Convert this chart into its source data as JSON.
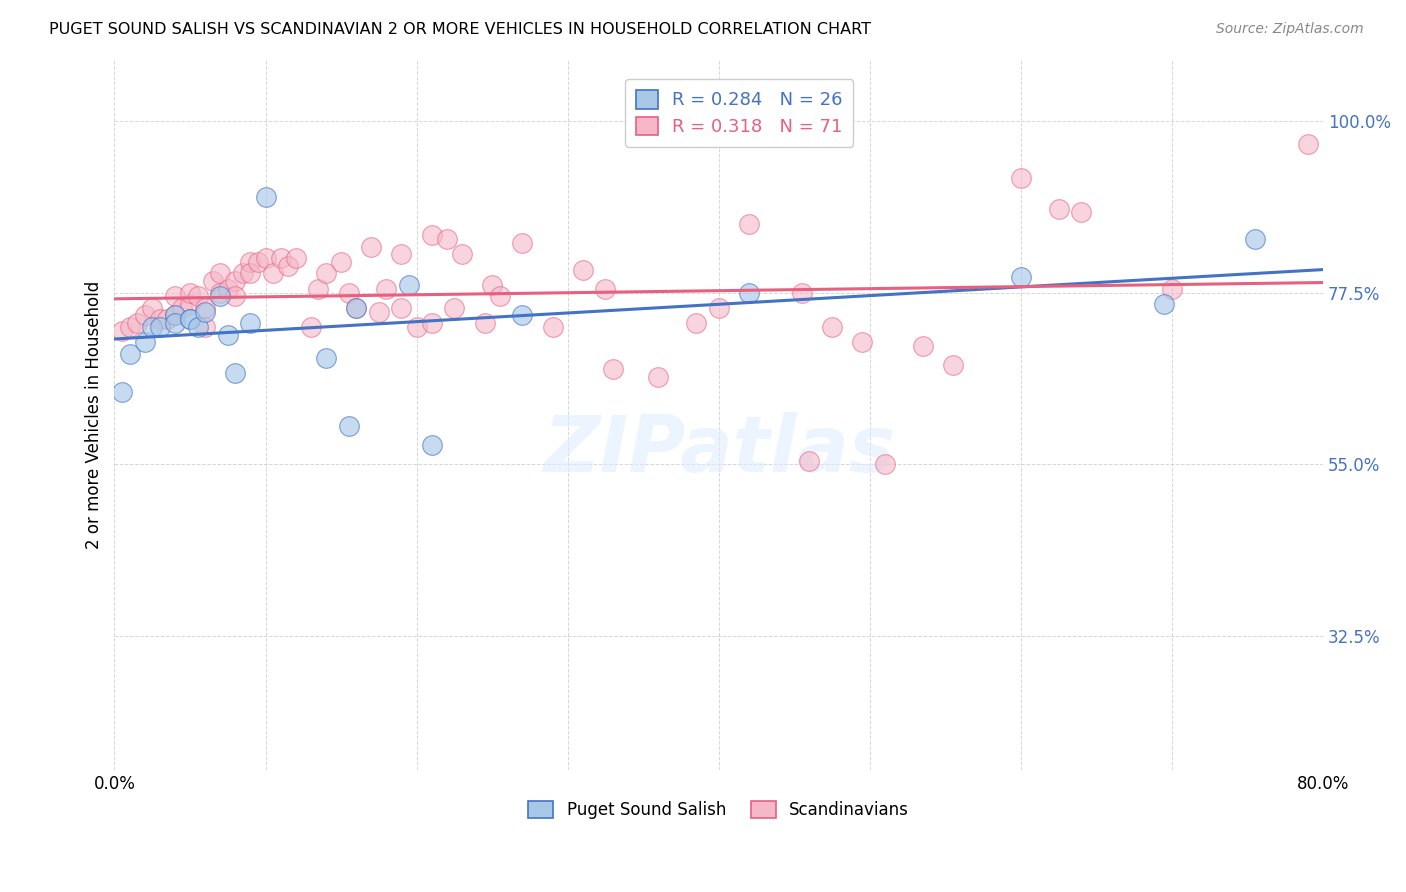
{
  "title": "PUGET SOUND SALISH VS SCANDINAVIAN 2 OR MORE VEHICLES IN HOUSEHOLD CORRELATION CHART",
  "source": "Source: ZipAtlas.com",
  "ylabel": "2 or more Vehicles in Household",
  "legend_label1": "Puget Sound Salish",
  "legend_label2": "Scandinavians",
  "R1": 0.284,
  "N1": 26,
  "R2": 0.318,
  "N2": 71,
  "color_blue": "#a8c8e8",
  "color_pink": "#f4b8c8",
  "color_blue_line": "#4472c4",
  "color_pink_line": "#e86080",
  "color_blue_text": "#4472c4",
  "color_pink_text": "#e86080",
  "color_ytick": "#4472c4",
  "xmin": 0.0,
  "xmax": 0.8,
  "ymin": 0.15,
  "ymax": 1.08,
  "ytick_vals": [
    1.0,
    0.775,
    0.55,
    0.325
  ],
  "ytick_labels": [
    "100.0%",
    "77.5%",
    "55.0%",
    "32.5%"
  ],
  "blue_x": [
    0.005,
    0.01,
    0.02,
    0.025,
    0.03,
    0.04,
    0.04,
    0.05,
    0.05,
    0.055,
    0.06,
    0.07,
    0.075,
    0.08,
    0.09,
    0.1,
    0.14,
    0.155,
    0.16,
    0.195,
    0.21,
    0.27,
    0.42,
    0.6,
    0.695,
    0.755
  ],
  "blue_y": [
    0.645,
    0.695,
    0.71,
    0.73,
    0.73,
    0.745,
    0.735,
    0.74,
    0.74,
    0.73,
    0.75,
    0.77,
    0.72,
    0.67,
    0.735,
    0.9,
    0.69,
    0.6,
    0.755,
    0.785,
    0.575,
    0.745,
    0.775,
    0.795,
    0.76,
    0.845
  ],
  "pink_x": [
    0.005,
    0.01,
    0.015,
    0.02,
    0.025,
    0.03,
    0.035,
    0.04,
    0.04,
    0.045,
    0.05,
    0.05,
    0.055,
    0.06,
    0.06,
    0.065,
    0.07,
    0.07,
    0.075,
    0.08,
    0.08,
    0.085,
    0.09,
    0.09,
    0.095,
    0.1,
    0.105,
    0.11,
    0.115,
    0.12,
    0.13,
    0.135,
    0.14,
    0.15,
    0.155,
    0.16,
    0.17,
    0.175,
    0.18,
    0.19,
    0.19,
    0.2,
    0.21,
    0.21,
    0.22,
    0.225,
    0.23,
    0.245,
    0.25,
    0.255,
    0.27,
    0.29,
    0.31,
    0.325,
    0.33,
    0.36,
    0.385,
    0.4,
    0.42,
    0.455,
    0.46,
    0.475,
    0.495,
    0.51,
    0.535,
    0.555,
    0.6,
    0.625,
    0.64,
    0.7,
    0.79
  ],
  "pink_y": [
    0.725,
    0.73,
    0.735,
    0.745,
    0.755,
    0.74,
    0.74,
    0.745,
    0.77,
    0.755,
    0.76,
    0.775,
    0.77,
    0.755,
    0.73,
    0.79,
    0.775,
    0.8,
    0.78,
    0.79,
    0.77,
    0.8,
    0.815,
    0.8,
    0.815,
    0.82,
    0.8,
    0.82,
    0.81,
    0.82,
    0.73,
    0.78,
    0.8,
    0.815,
    0.775,
    0.755,
    0.835,
    0.75,
    0.78,
    0.755,
    0.825,
    0.73,
    0.735,
    0.85,
    0.845,
    0.755,
    0.825,
    0.735,
    0.785,
    0.77,
    0.84,
    0.73,
    0.805,
    0.78,
    0.675,
    0.665,
    0.735,
    0.755,
    0.865,
    0.775,
    0.555,
    0.73,
    0.71,
    0.55,
    0.705,
    0.68,
    0.925,
    0.885,
    0.88,
    0.78,
    0.97
  ]
}
